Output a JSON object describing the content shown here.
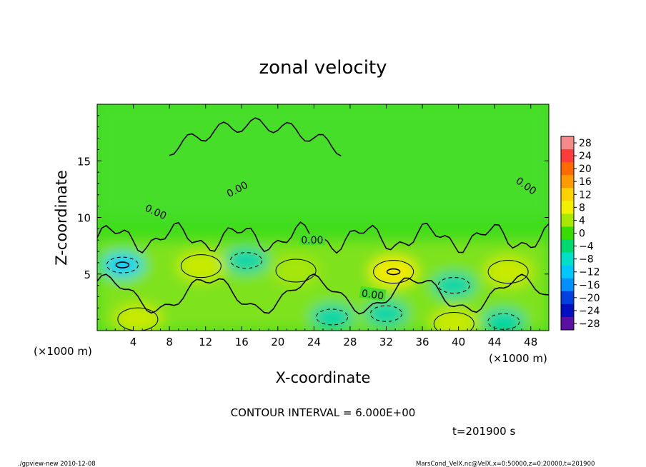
{
  "chart_data": {
    "type": "heatmap",
    "title": "zonal velocity",
    "xlabel": "X-coordinate",
    "ylabel": "Z-coordinate",
    "x_unit_left": "(×1000 m)",
    "x_unit_right": "(×1000 m)",
    "xlim": [
      0,
      50
    ],
    "ylim": [
      0,
      20
    ],
    "x_ticks": [
      4,
      8,
      12,
      16,
      20,
      24,
      28,
      32,
      36,
      40,
      44,
      48
    ],
    "y_ticks": [
      5,
      10,
      15
    ],
    "contour_interval_text": "CONTOUR INTERVAL = 6.000E+00",
    "time_text": "t=201900 s",
    "contour_labels": [
      "0.00",
      "0.00",
      "0.00",
      "0.00",
      "0.00"
    ],
    "colorbar": {
      "labels": [
        "28",
        "24",
        "20",
        "16",
        "12",
        "8",
        "4",
        "0",
        "−4",
        "−8",
        "−12",
        "−16",
        "−20",
        "−24",
        "−28"
      ],
      "colors": [
        "#f58a8a",
        "#ff3c3c",
        "#ff6a00",
        "#ff9a00",
        "#ffd200",
        "#f2f000",
        "#a8e800",
        "#39dc00",
        "#00d870",
        "#00e0c8",
        "#00c8ff",
        "#0090ff",
        "#0040e0",
        "#0010c0",
        "#5a10a0"
      ]
    },
    "features": [
      {
        "x": 32.8,
        "z": 5.2,
        "value": 10,
        "kind": "max"
      },
      {
        "x": 22.0,
        "z": 5.3,
        "value": 5,
        "kind": "max"
      },
      {
        "x": 45.5,
        "z": 5.2,
        "value": 7,
        "kind": "max"
      },
      {
        "x": 11.5,
        "z": 5.7,
        "value": 6,
        "kind": "max"
      },
      {
        "x": 4.5,
        "z": 1.0,
        "value": 7,
        "kind": "max"
      },
      {
        "x": 39.5,
        "z": 0.6,
        "value": 7,
        "kind": "max"
      },
      {
        "x": 2.8,
        "z": 5.8,
        "value": -9,
        "kind": "min"
      },
      {
        "x": 39.5,
        "z": 4.0,
        "value": -7,
        "kind": "min"
      },
      {
        "x": 16.5,
        "z": 6.2,
        "value": -5,
        "kind": "min"
      },
      {
        "x": 26.0,
        "z": 1.2,
        "value": -6,
        "kind": "min"
      },
      {
        "x": 32.0,
        "z": 1.5,
        "value": -6,
        "kind": "min"
      },
      {
        "x": 45.0,
        "z": 0.8,
        "value": -7,
        "kind": "min"
      }
    ]
  },
  "footer": {
    "left": "./gpview-new   2010-12-08",
    "right": "MarsCond_VelX.nc@VelX,x=0:50000,z=0:20000,t=201900"
  }
}
